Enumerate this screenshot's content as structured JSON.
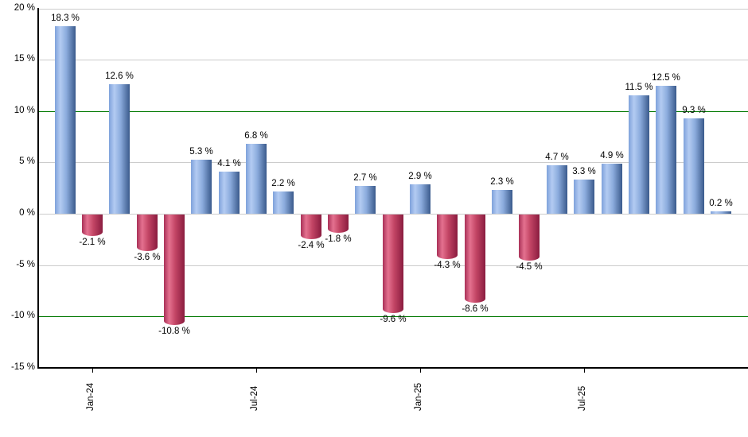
{
  "chart_data": {
    "type": "bar",
    "title": "",
    "xlabel": "",
    "ylabel": "",
    "ylim": [
      -15,
      20
    ],
    "grid": true,
    "legend": "none",
    "y_ticks": [
      {
        "value": 20,
        "label": "20 %"
      },
      {
        "value": 15,
        "label": "15 %"
      },
      {
        "value": 10,
        "label": "10 %"
      },
      {
        "value": 5,
        "label": "5 %"
      },
      {
        "value": 0,
        "label": "0 %"
      },
      {
        "value": -5,
        "label": "-5 %"
      },
      {
        "value": -10,
        "label": "-10 %"
      },
      {
        "value": -15,
        "label": "-15 %"
      }
    ],
    "reference_lines": [
      {
        "value": 10,
        "color": "#007800"
      },
      {
        "value": -10,
        "color": "#007800"
      }
    ],
    "x_ticks": [
      {
        "bar_index": 1,
        "label": "Jan-24"
      },
      {
        "bar_index": 7,
        "label": "Jul-24"
      },
      {
        "bar_index": 13,
        "label": "Jan-25"
      },
      {
        "bar_index": 19,
        "label": "Jul-25"
      }
    ],
    "bars": [
      {
        "value": 18.3,
        "label": "18.3 %"
      },
      {
        "value": -2.1,
        "label": "-2.1 %"
      },
      {
        "value": 12.6,
        "label": "12.6 %"
      },
      {
        "value": -3.6,
        "label": "-3.6 %"
      },
      {
        "value": -10.8,
        "label": "-10.8 %"
      },
      {
        "value": 5.3,
        "label": "5.3 %"
      },
      {
        "value": 4.1,
        "label": "4.1 %"
      },
      {
        "value": 6.8,
        "label": "6.8 %"
      },
      {
        "value": 2.2,
        "label": "2.2 %"
      },
      {
        "value": -2.4,
        "label": "-2.4 %"
      },
      {
        "value": -1.8,
        "label": "-1.8 %"
      },
      {
        "value": 2.7,
        "label": "2.7 %"
      },
      {
        "value": -9.6,
        "label": "-9.6 %"
      },
      {
        "value": 2.9,
        "label": "2.9 %"
      },
      {
        "value": -4.3,
        "label": "-4.3 %"
      },
      {
        "value": -8.6,
        "label": "-8.6 %"
      },
      {
        "value": 2.3,
        "label": "2.3 %"
      },
      {
        "value": -4.5,
        "label": "-4.5 %"
      },
      {
        "value": 4.7,
        "label": "4.7 %"
      },
      {
        "value": 3.3,
        "label": "3.3 %"
      },
      {
        "value": 4.9,
        "label": "4.9 %"
      },
      {
        "value": 11.5,
        "label": "11.5 %"
      },
      {
        "value": 12.5,
        "label": "12.5 %"
      },
      {
        "value": 9.3,
        "label": "9.3 %"
      },
      {
        "value": 0.2,
        "label": "0.2 %"
      }
    ],
    "colors": {
      "positive_bar": [
        "#7FA2DB",
        "#B3CBF2",
        "#8CACDD",
        "#3A5A8C"
      ],
      "negative_bar": [
        "#A93158",
        "#E4718F",
        "#C34565",
        "#8A1C3F"
      ],
      "gridline": "#cccccc",
      "reference_line": "#007800",
      "axis": "#000000",
      "text": "#000000",
      "background": "#ffffff"
    }
  }
}
